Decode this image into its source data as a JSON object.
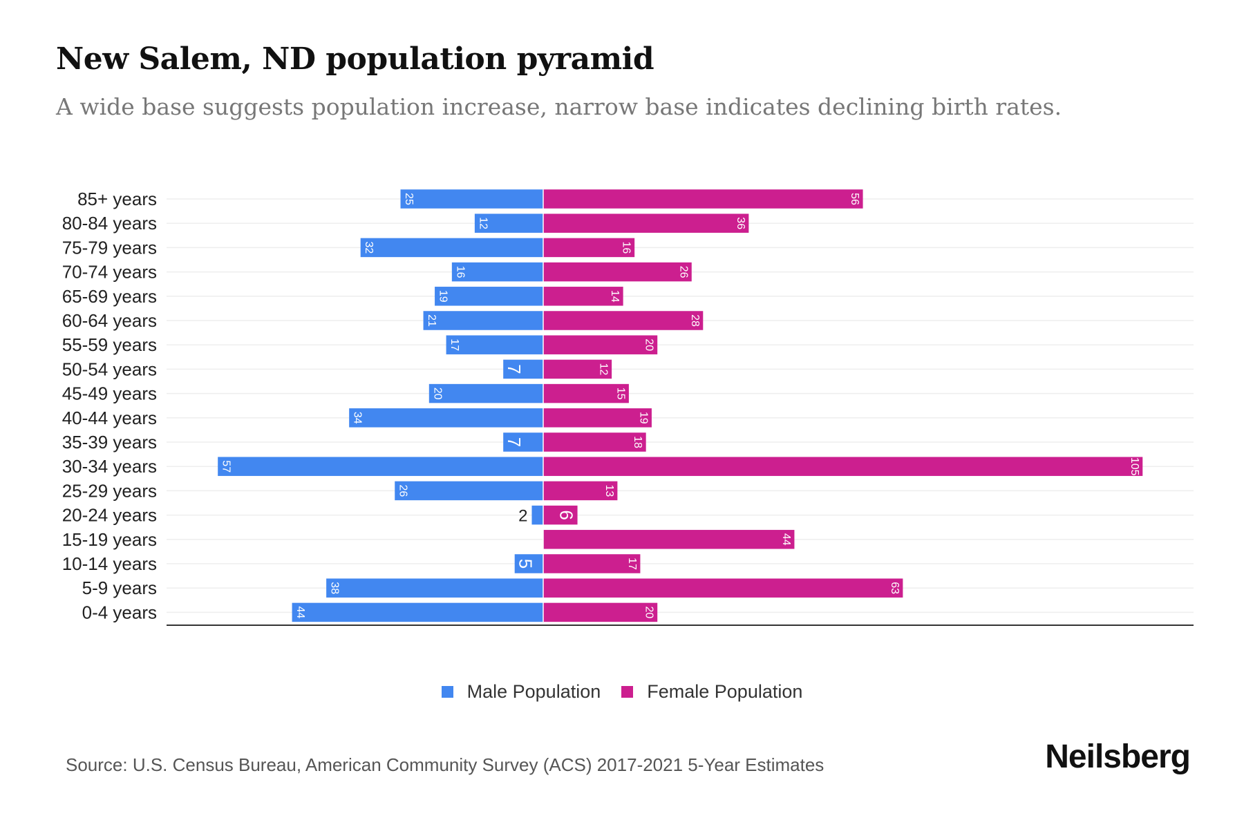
{
  "title": "New Salem, ND population pyramid",
  "subtitle": "A wide base suggests population increase, narrow base indicates declining birth rates.",
  "source": "Source: U.S. Census Bureau, American Community Survey (ACS) 2017-2021 5-Year Estimates",
  "brand": "Neilsberg",
  "colors": {
    "male": "#4287f0",
    "female": "#cc1f8f"
  },
  "chart_data": {
    "type": "bar",
    "orientation": "horizontal-pyramid",
    "categories": [
      "85+ years",
      "80-84 years",
      "75-79 years",
      "70-74 years",
      "65-69 years",
      "60-64 years",
      "55-59 years",
      "50-54 years",
      "45-49 years",
      "40-44 years",
      "35-39 years",
      "30-34 years",
      "25-29 years",
      "20-24 years",
      "15-19 years",
      "10-14 years",
      "5-9 years",
      "0-4 years"
    ],
    "series": [
      {
        "name": "Male Population",
        "values": [
          25,
          12,
          32,
          16,
          19,
          21,
          17,
          7,
          20,
          34,
          7,
          57,
          26,
          2,
          0,
          5,
          38,
          44
        ]
      },
      {
        "name": "Female Population",
        "values": [
          56,
          36,
          16,
          26,
          14,
          28,
          20,
          12,
          15,
          19,
          18,
          105,
          13,
          6,
          44,
          17,
          63,
          20
        ]
      }
    ],
    "legend_position": "bottom",
    "grid": true
  }
}
